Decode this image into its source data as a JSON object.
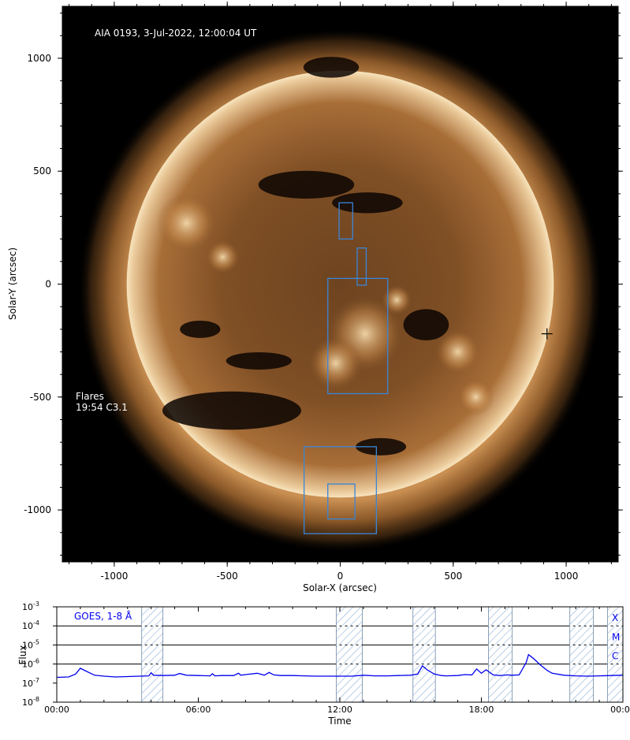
{
  "chart_data": [
    {
      "type": "image",
      "title": "AIA 0193, 3-Jul-2022, 12:00:04 UT",
      "xlabel": "Solar-X (arcsec)",
      "ylabel": "Solar-Y (arcsec)",
      "xlim": [
        -1230,
        1230
      ],
      "ylim": [
        -1230,
        1230
      ],
      "xticks": [
        -1000,
        -500,
        0,
        500,
        1000
      ],
      "yticks": [
        1000,
        500,
        0,
        -500,
        -1000
      ],
      "xtick_labels": [
        "-1000",
        "-500",
        "0",
        "500",
        "1000"
      ],
      "ytick_labels": [
        "1000",
        "500",
        "0",
        "-500",
        "-1000"
      ],
      "solar_radius": 945,
      "flares_label": "Flares",
      "flare_entries": [
        "19:54 C3.1"
      ],
      "flare_marker": {
        "x": 915,
        "y": -220
      },
      "regions": [
        {
          "x0": -5,
          "y0": 200,
          "x1": 55,
          "y1": 360
        },
        {
          "x0": 75,
          "y0": -5,
          "x1": 115,
          "y1": 160
        },
        {
          "x0": -55,
          "y0": -485,
          "x1": 210,
          "y1": 25
        },
        {
          "x0": -160,
          "y0": -1105,
          "x1": 160,
          "y1": -720
        },
        {
          "x0": -55,
          "y0": -1040,
          "x1": 65,
          "y1": -885
        }
      ],
      "colors": {
        "frame": "#000000",
        "region": "#3a86d8",
        "disk_mid": "#8a5528",
        "disk_bright": "#f6dfb4"
      }
    },
    {
      "type": "line",
      "title": "GOES, 1-8 Å",
      "xlabel": "Time",
      "ylabel": "Flux",
      "xlim_hours": [
        0,
        24
      ],
      "ylog": true,
      "ylim_exp": [
        -8,
        -3
      ],
      "yticks_exp": [
        -8,
        -7,
        -6,
        -5,
        -4,
        -3
      ],
      "ytick_base": "10",
      "xticks_hours": [
        0,
        6,
        12,
        18,
        24
      ],
      "xtick_labels": [
        "00:00",
        "06:00",
        "12:00",
        "18:00",
        "00:00"
      ],
      "class_levels": [
        {
          "label": "X",
          "exp": -4
        },
        {
          "label": "M",
          "exp": -5
        },
        {
          "label": "C",
          "exp": -6
        }
      ],
      "shaded_intervals_hours": [
        [
          3.6,
          4.5
        ],
        [
          11.85,
          12.95
        ],
        [
          15.1,
          16.05
        ],
        [
          18.3,
          19.3
        ],
        [
          21.75,
          22.75
        ],
        [
          23.35,
          24
        ]
      ],
      "series": [
        {
          "x": [
            0,
            0.5,
            0.8,
            1.0,
            1.2,
            1.6,
            2.0,
            2.5,
            3.0,
            3.5,
            3.9,
            4.0,
            4.1,
            4.5,
            5.0,
            5.2,
            5.5,
            6.0,
            6.5,
            6.6,
            6.7,
            7.0,
            7.5,
            7.7,
            7.8,
            8.0,
            8.5,
            8.8,
            9.0,
            9.2,
            9.5,
            10.0,
            10.5,
            11.0,
            11.5,
            12.0,
            12.5,
            13.0,
            13.5,
            14.0,
            14.5,
            15.0,
            15.3,
            15.5,
            15.7,
            16.0,
            16.3,
            16.5,
            17.0,
            17.3,
            17.6,
            17.8,
            18.0,
            18.2,
            18.5,
            18.8,
            19.1,
            19.3,
            19.6,
            19.9,
            20.0,
            20.2,
            20.5,
            20.8,
            21.0,
            21.5,
            22.0,
            22.5,
            23.0,
            23.5,
            24.0
          ],
          "y": [
            2e-07,
            2.1e-07,
            3e-07,
            6e-07,
            4.5e-07,
            2.6e-07,
            2.3e-07,
            2.1e-07,
            2.2e-07,
            2.3e-07,
            2.4e-07,
            3.5e-07,
            2.6e-07,
            2.5e-07,
            2.6e-07,
            3.2e-07,
            2.6e-07,
            2.5e-07,
            2.4e-07,
            3.1e-07,
            2.4e-07,
            2.5e-07,
            2.5e-07,
            3.3e-07,
            2.6e-07,
            2.8e-07,
            3.3e-07,
            2.6e-07,
            3.6e-07,
            2.7e-07,
            2.5e-07,
            2.5e-07,
            2.4e-07,
            2.3e-07,
            2.3e-07,
            2.3e-07,
            2.3e-07,
            2.6e-07,
            2.4e-07,
            2.4e-07,
            2.5e-07,
            2.6e-07,
            3e-07,
            8e-07,
            5e-07,
            3e-07,
            2.5e-07,
            2.4e-07,
            2.5e-07,
            2.8e-07,
            2.7e-07,
            5.5e-07,
            3.3e-07,
            5e-07,
            2.7e-07,
            2.5e-07,
            2.7e-07,
            2.6e-07,
            2.7e-07,
            1.2e-06,
            3.1e-06,
            2e-06,
            9e-07,
            4.5e-07,
            3.3e-07,
            2.6e-07,
            2.4e-07,
            2.3e-07,
            2.4e-07,
            2.5e-07,
            2.6e-07
          ],
          "color": "#0000ee"
        }
      ],
      "colors": {
        "line": "#0000ee",
        "hatch": "#8fb1d6",
        "label": "#0000ee"
      }
    }
  ]
}
